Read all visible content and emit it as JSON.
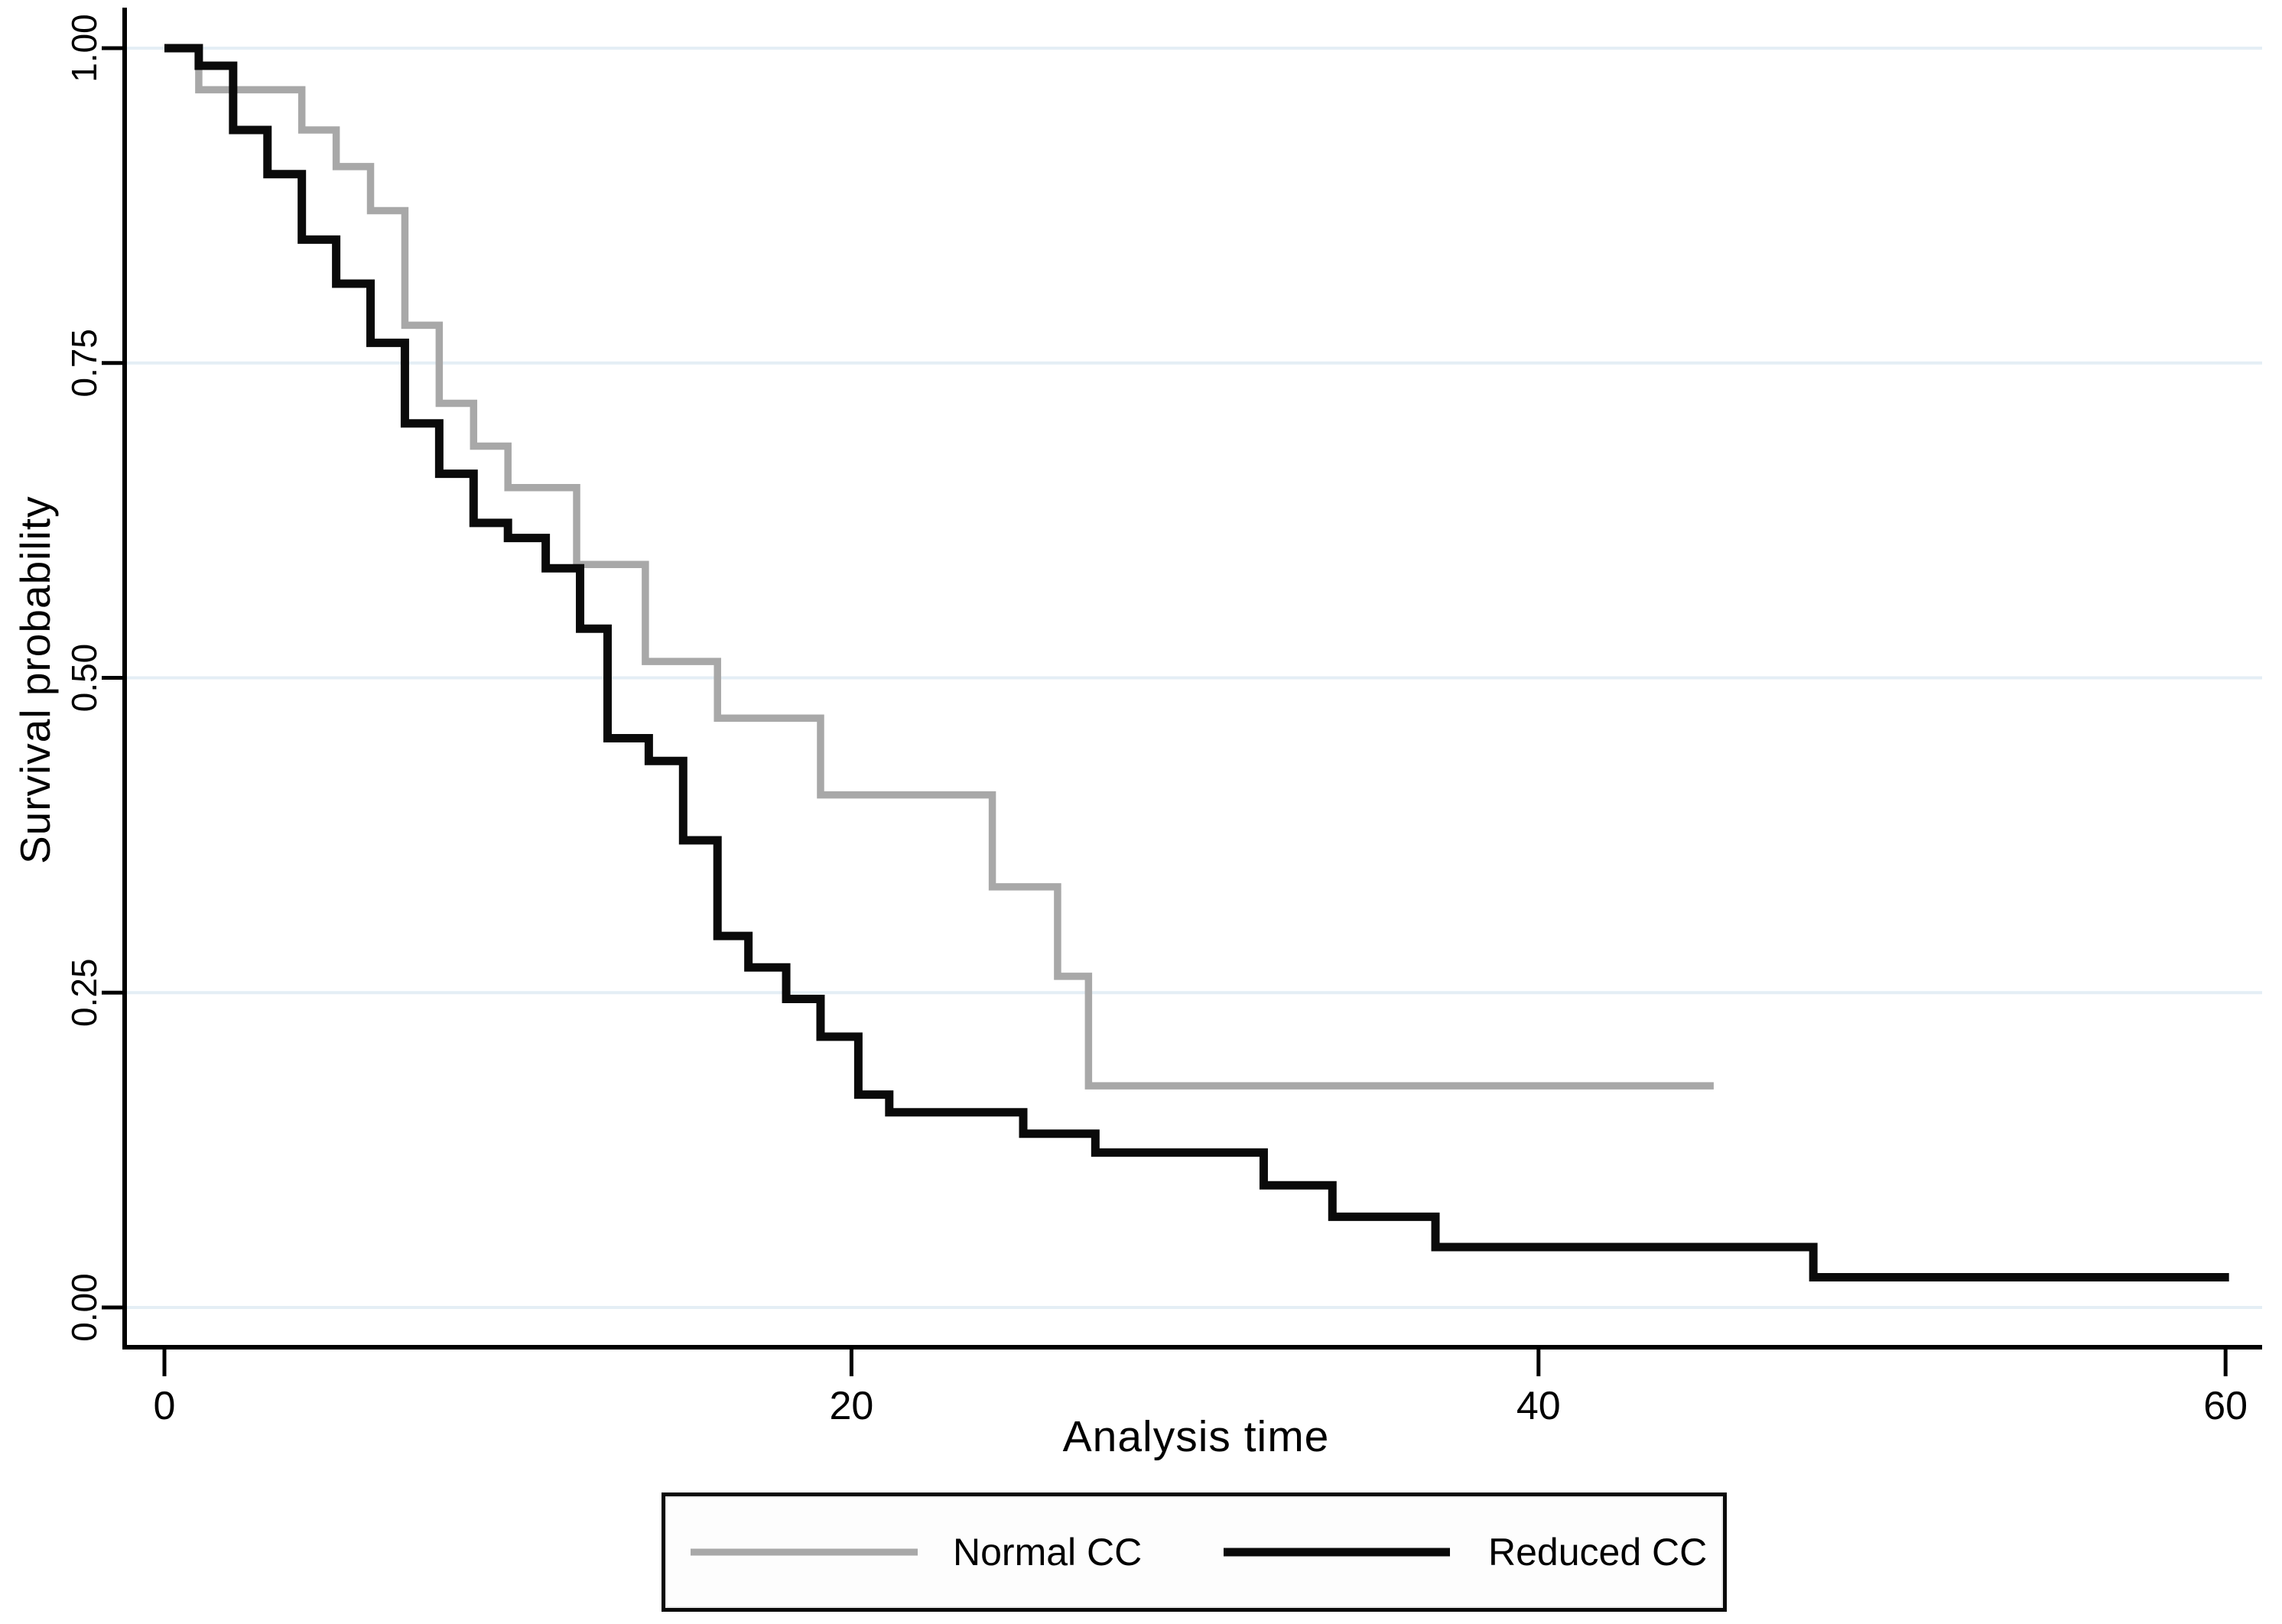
{
  "figure": {
    "background_color": "#ffffff",
    "axis_line_color": "#000000",
    "axis_text_color": "#000000",
    "gridline_color": "#e4eef5"
  },
  "chart_data": {
    "type": "line",
    "variant": "kaplan_meier_step_function",
    "title": "",
    "xlabel": "Analysis time",
    "ylabel": "Survival probability",
    "xlim": [
      0,
      60
    ],
    "ylim": [
      0.0,
      1.0
    ],
    "grid": "horizontal-only",
    "legend_position": "bottom-center-boxed",
    "xticks": [
      {
        "value": 0,
        "label": "0"
      },
      {
        "value": 20,
        "label": "20"
      },
      {
        "value": 40,
        "label": "40"
      },
      {
        "value": 60,
        "label": "60"
      }
    ],
    "yticks": [
      {
        "value": 0.0,
        "label": "0.00"
      },
      {
        "value": 0.25,
        "label": "0.25"
      },
      {
        "value": 0.5,
        "label": "0.50"
      },
      {
        "value": 0.75,
        "label": "0.75"
      },
      {
        "value": 1.0,
        "label": "1.00"
      }
    ],
    "series": [
      {
        "name": "Normal CC",
        "color": "#a8a8a8",
        "line_width": 9.5,
        "end_time": 45.1,
        "steps": [
          [
            0,
            1.0
          ],
          [
            1,
            0.967
          ],
          [
            4,
            0.935
          ],
          [
            5,
            0.906
          ],
          [
            6,
            0.871
          ],
          [
            7,
            0.78
          ],
          [
            8,
            0.718
          ],
          [
            9,
            0.684
          ],
          [
            10,
            0.651
          ],
          [
            12,
            0.59
          ],
          [
            14,
            0.513
          ],
          [
            16.1,
            0.468
          ],
          [
            19.1,
            0.407
          ],
          [
            24.1,
            0.334
          ],
          [
            26,
            0.263
          ],
          [
            26.9,
            0.176
          ]
        ]
      },
      {
        "name": "Reduced CC",
        "color": "#0a0a0a",
        "line_width": 11,
        "end_time": 60.1,
        "steps": [
          [
            0,
            1.0
          ],
          [
            1,
            0.986
          ],
          [
            2,
            0.935
          ],
          [
            3,
            0.9
          ],
          [
            4,
            0.848
          ],
          [
            5,
            0.813
          ],
          [
            6,
            0.766
          ],
          [
            7,
            0.702
          ],
          [
            8,
            0.662
          ],
          [
            9,
            0.623
          ],
          [
            10,
            0.611
          ],
          [
            11.1,
            0.587
          ],
          [
            12.1,
            0.539
          ],
          [
            12.9,
            0.452
          ],
          [
            14.1,
            0.434
          ],
          [
            15.1,
            0.371
          ],
          [
            16.1,
            0.295
          ],
          [
            17,
            0.27
          ],
          [
            18.1,
            0.245
          ],
          [
            19.1,
            0.215
          ],
          [
            20.2,
            0.169
          ],
          [
            21.1,
            0.155
          ],
          [
            25,
            0.138
          ],
          [
            27.1,
            0.123
          ],
          [
            32,
            0.097
          ],
          [
            34,
            0.072
          ],
          [
            37,
            0.048
          ],
          [
            48,
            0.024
          ]
        ]
      }
    ]
  },
  "legend": {
    "items": [
      {
        "label": "Normal CC"
      },
      {
        "label": "Reduced CC"
      }
    ]
  }
}
